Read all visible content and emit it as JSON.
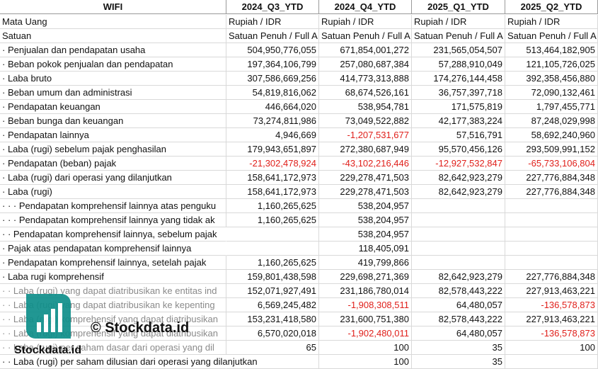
{
  "table": {
    "header": [
      "WIFI",
      "2024_Q3_YTD",
      "2024_Q4_YTD",
      "2025_Q1_YTD",
      "2025_Q2_YTD"
    ],
    "rows": [
      [
        "Mata Uang",
        "Rupiah / IDR",
        "Rupiah / IDR",
        "Rupiah / IDR",
        "Rupiah / IDR"
      ],
      [
        "Satuan",
        "Satuan Penuh / Full A",
        "Satuan Penuh / Full A",
        "Satuan Penuh / Full A",
        "Satuan Penuh / Full A"
      ],
      [
        "· Penjualan dan pendapatan usaha",
        "504,950,776,055",
        "671,854,001,272",
        "231,565,054,507",
        "513,464,182,905"
      ],
      [
        "· Beban pokok penjualan dan pendapatan",
        "197,364,106,799",
        "257,080,687,384",
        "57,288,910,049",
        "121,105,726,025"
      ],
      [
        "· Laba bruto",
        "307,586,669,256",
        "414,773,313,888",
        "174,276,144,458",
        "392,358,456,880"
      ],
      [
        "· Beban umum dan administrasi",
        "54,819,816,062",
        "68,674,526,161",
        "36,757,397,718",
        "72,090,132,461"
      ],
      [
        "· Pendapatan keuangan",
        "446,664,020",
        "538,954,781",
        "171,575,819",
        "1,797,455,771"
      ],
      [
        "· Beban bunga dan keuangan",
        "73,274,811,986",
        "73,049,522,882",
        "42,177,383,224",
        "87,248,029,998"
      ],
      [
        "· Pendapatan lainnya",
        "4,946,669",
        "-1,207,531,677",
        "57,516,791",
        "58,692,240,960"
      ],
      [
        "· Laba (rugi) sebelum pajak penghasilan",
        "179,943,651,897",
        "272,380,687,949",
        "95,570,456,126",
        "293,509,991,152"
      ],
      [
        "· Pendapatan (beban) pajak",
        "-21,302,478,924",
        "-43,102,216,446",
        "-12,927,532,847",
        "-65,733,106,804"
      ],
      [
        "· Laba (rugi) dari operasi yang dilanjutkan",
        "158,641,172,973",
        "229,278,471,503",
        "82,642,923,279",
        "227,776,884,348"
      ],
      [
        "· Laba (rugi)",
        "158,641,172,973",
        "229,278,471,503",
        "82,642,923,279",
        "227,776,884,348"
      ],
      [
        "· · · Pendapatan komprehensif lainnya atas penguku",
        "1,160,265,625",
        "538,204,957",
        null,
        null
      ],
      [
        "· · · Pendapatan komprehensif lainnya yang tidak ak",
        "1,160,265,625",
        "538,204,957",
        null,
        null
      ],
      [
        "· · Pendapatan komprehensif lainnya, sebelum pajak",
        null,
        "538,204,957",
        null,
        null
      ],
      [
        "· Pajak atas pendapatan komprehensif lainnya",
        null,
        "118,405,091",
        null,
        null
      ],
      [
        "· Pendapatan komprehensif lainnya, setelah pajak",
        "1,160,265,625",
        "419,799,866",
        null,
        null
      ],
      [
        "· Laba rugi komprehensif",
        "159,801,438,598",
        "229,698,271,369",
        "82,642,923,279",
        "227,776,884,348"
      ],
      [
        "· · Laba (rugi) yang dapat diatribusikan ke entitas ind",
        "152,071,927,491",
        "231,186,780,014",
        "82,578,443,222",
        "227,913,463,221"
      ],
      [
        "· · Laba (rugi) yang dapat diatribusikan ke kepenting",
        "6,569,245,482",
        "-1,908,308,511",
        "64,480,057",
        "-136,578,873"
      ],
      [
        "· · Laba (rugi) komprehensif yang dapat diatribusikan",
        "153,231,418,580",
        "231,600,751,380",
        "82,578,443,222",
        "227,913,463,221"
      ],
      [
        "· · Laba (rugi) komprehensif yang dapat diatribusikan",
        "6,570,020,018",
        "-1,902,480,011",
        "64,480,057",
        "-136,578,873"
      ],
      [
        "· · Laba (rugi) per saham dasar dari operasi yang dil",
        "65",
        "100",
        "35",
        "100"
      ],
      [
        "· · Laba (rugi) per saham dilusian dari operasi yang dilanjutkan",
        null,
        "100",
        "35",
        null
      ]
    ]
  },
  "watermark": {
    "center": "© Stockdata.id",
    "logo": "Stockdata.id"
  }
}
